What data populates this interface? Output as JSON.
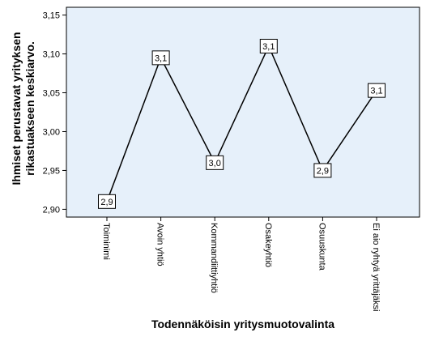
{
  "chart_data": {
    "type": "line",
    "title": "",
    "xlabel": "Todennäköisin yritysmuotovalinta",
    "ylabel_lines": [
      "Ihmiset perustavat yrityksen",
      "rikastuakseen keskiarvo."
    ],
    "categories": [
      "Toiminimi",
      "Avoin yhtiö",
      "Kommandiittiyhtiö",
      "Osakeyhtiö",
      "Osuuskunta",
      "Ei aio ryhtyä yrittäjäksi"
    ],
    "values": [
      2.91,
      3.095,
      2.96,
      3.11,
      2.95,
      3.053
    ],
    "data_labels": [
      "2,9",
      "3,1",
      "3,0",
      "3,1",
      "2,9",
      "3,1"
    ],
    "yticks": [
      "2,90",
      "2,95",
      "3,00",
      "3,05",
      "3,10",
      "3,15"
    ],
    "ytick_values": [
      2.9,
      2.95,
      3.0,
      3.05,
      3.1,
      3.15
    ],
    "ylim": [
      2.89,
      3.16
    ],
    "grid": false,
    "legend": "none",
    "colors": {
      "plot_background": "#e6f0fa",
      "line": "#000000",
      "axis": "#000000"
    }
  }
}
